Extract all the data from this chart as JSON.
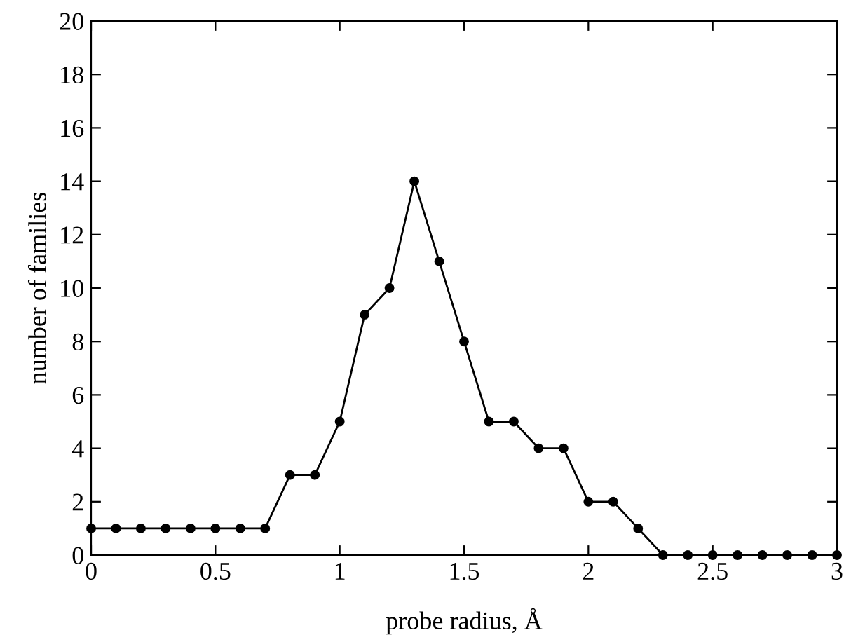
{
  "chart_data": {
    "type": "line",
    "xlabel": "probe radius, Å",
    "ylabel": "number of families",
    "x": [
      0,
      0.1,
      0.2,
      0.3,
      0.4,
      0.5,
      0.6,
      0.7,
      0.8,
      0.9,
      1.0,
      1.1,
      1.2,
      1.3,
      1.4,
      1.5,
      1.6,
      1.7,
      1.8,
      1.9,
      2.0,
      2.1,
      2.2,
      2.3,
      2.4,
      2.5,
      2.6,
      2.7,
      2.8,
      2.9,
      3.0
    ],
    "values": [
      1,
      1,
      1,
      1,
      1,
      1,
      1,
      1,
      3,
      3,
      5,
      9,
      10,
      14,
      11,
      8,
      5,
      5,
      4,
      4,
      2,
      2,
      1,
      0,
      0,
      0,
      0,
      0,
      0,
      0,
      0
    ],
    "color": "#000000",
    "marker": "circle",
    "line_style": "solid",
    "grid": false,
    "legend": false,
    "xlim": [
      0,
      3
    ],
    "xticks": [
      0,
      0.5,
      1,
      1.5,
      2,
      2.5,
      3
    ],
    "ylim": [
      0,
      20
    ],
    "yticks": [
      0,
      2,
      4,
      6,
      8,
      10,
      12,
      14,
      16,
      18,
      20
    ]
  }
}
